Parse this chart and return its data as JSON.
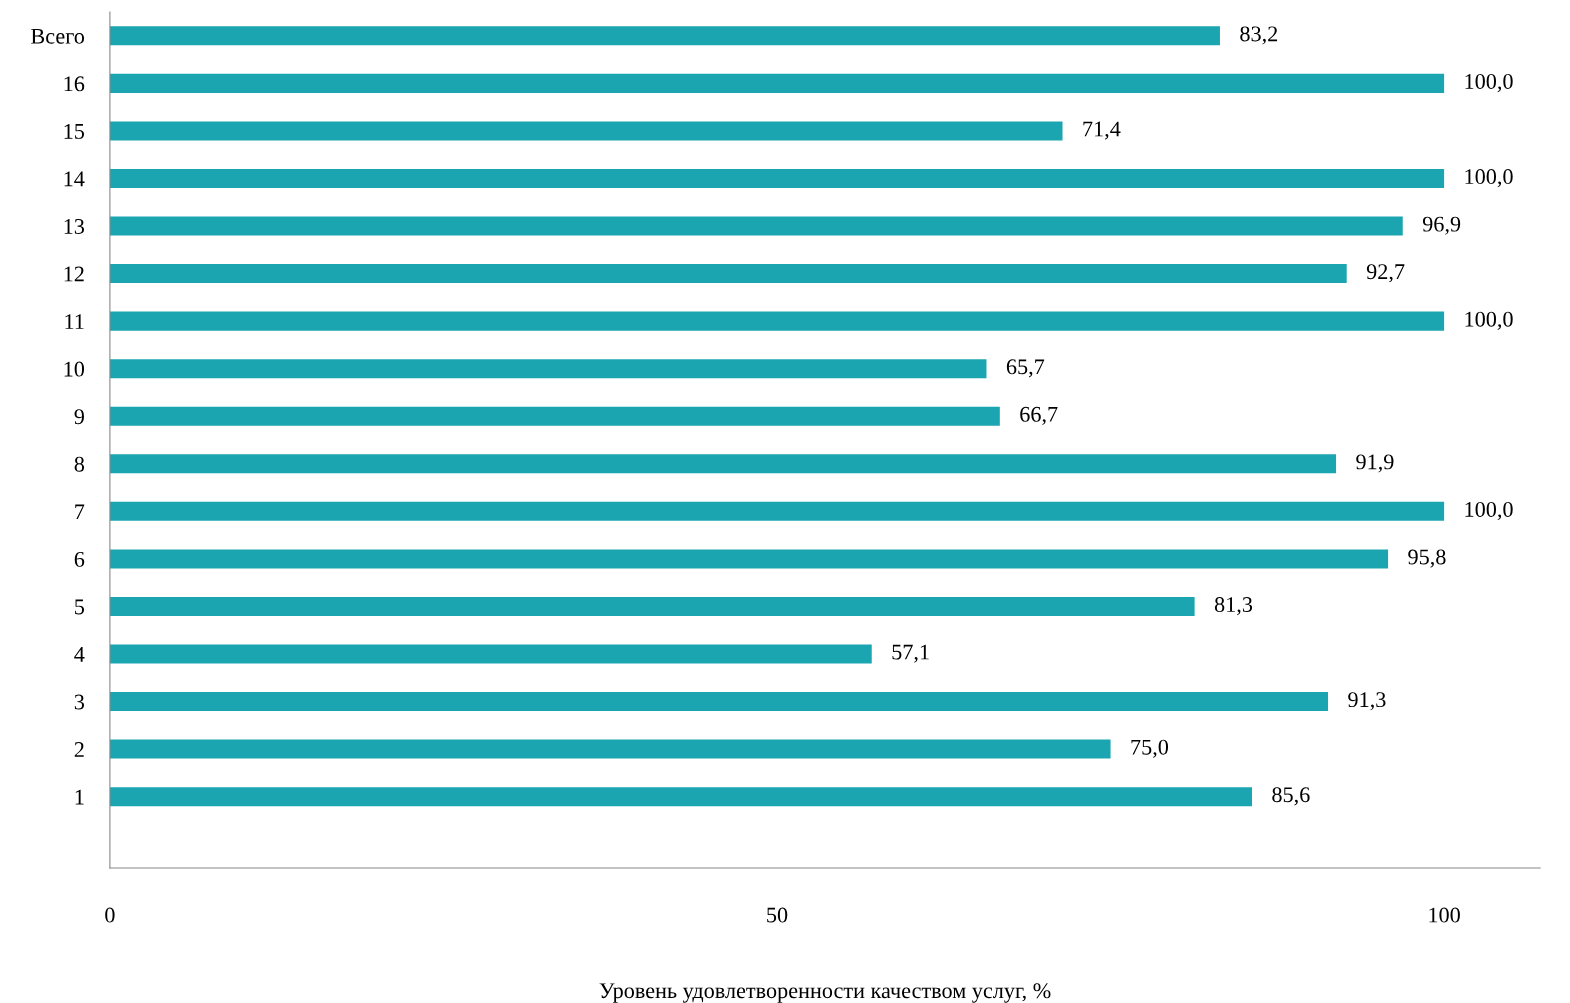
{
  "chart_data": {
    "type": "bar",
    "orientation": "horizontal",
    "xlabel": "Уровень удовлетворенности качеством услуг, %",
    "categories": [
      "Всего",
      "16",
      "15",
      "14",
      "13",
      "12",
      "11",
      "10",
      "9",
      "8",
      "7",
      "6",
      "5",
      "4",
      "3",
      "2",
      "1"
    ],
    "values": [
      83.2,
      100.0,
      71.4,
      100.0,
      96.9,
      92.7,
      100.0,
      65.7,
      66.7,
      91.9,
      100.0,
      95.8,
      81.3,
      57.1,
      91.3,
      75.0,
      85.6
    ],
    "value_labels": [
      "83,2",
      "100,0",
      "71,4",
      "100,0",
      "96,9",
      "92,7",
      "100,0",
      "65,7",
      "66,7",
      "91,9",
      "100,0",
      "95,8",
      "81,3",
      "57,1",
      "91,3",
      "75,0",
      "85,6"
    ],
    "color": "#1ba5b0",
    "xlim": [
      0,
      107.2
    ],
    "xticks": [
      0,
      50,
      100
    ],
    "grid": false,
    "legend": false
  }
}
